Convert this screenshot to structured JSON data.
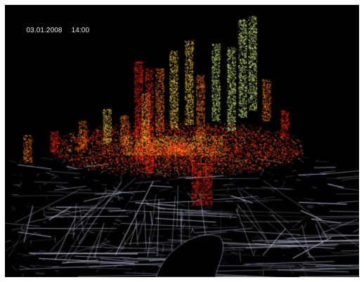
{
  "overlay": {
    "date": "03.01.2008",
    "time": "14:00"
  },
  "colors": {
    "background": "#000000",
    "frame": "#ffffff",
    "street": "#c8cce6",
    "water": "#8f97b8",
    "activity_low": "#ff2a10",
    "activity_mid": "#ff7a14",
    "activity_high": "#ffd23a",
    "activity_peak": "#d8f27a",
    "underlay": "#2a2aa8"
  }
}
